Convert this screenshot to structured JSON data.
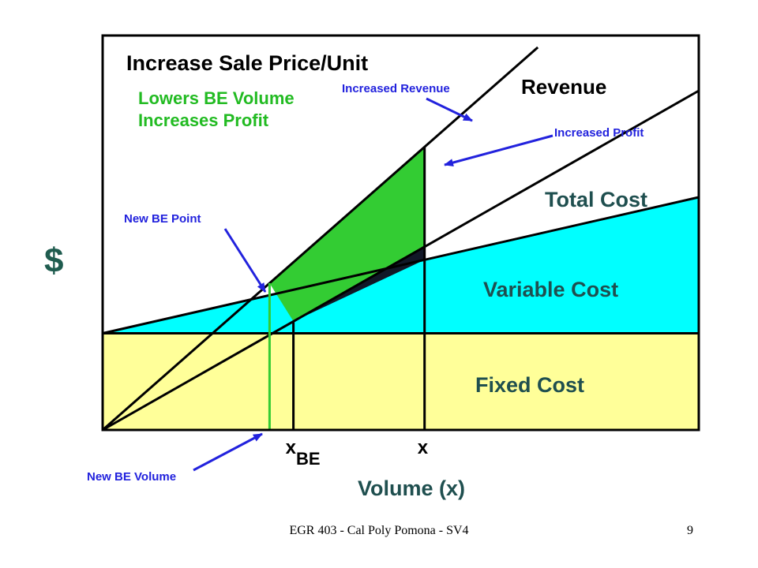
{
  "colors": {
    "fixed": "#FFFF99",
    "variable": "#00FFFF",
    "increased_profit": "#33CC33",
    "profit": "#111827",
    "annotation_green": "#22BB22",
    "annotation_blue": "#2222DD",
    "ylabel_color": "#1F5C4F"
  },
  "chart_data": {
    "type": "line",
    "title": "Increase Sale Price/Unit",
    "subtitle_lines": [
      "Lowers BE Volume",
      "Increases Profit"
    ],
    "ylabel": "$",
    "xlabel": "Volume (x)",
    "xlim": [
      0,
      100
    ],
    "ylim": [
      0,
      100
    ],
    "grid": false,
    "x_ticks": [
      {
        "name": "xbe",
        "main": "x",
        "sub": "BE",
        "value": 32
      },
      {
        "name": "x",
        "main": "x",
        "sub": "",
        "value": 54
      }
    ],
    "series": [
      {
        "name": "Revenue",
        "x": [
          0,
          100
        ],
        "y": [
          0,
          86
        ]
      },
      {
        "name": "Increased Revenue",
        "x": [
          0,
          73
        ],
        "y": [
          0,
          97
        ]
      },
      {
        "name": "Total Cost",
        "x": [
          0,
          100
        ],
        "y": [
          24.5,
          59
        ]
      }
    ],
    "fixed_cost": 24.5,
    "regions": [
      {
        "name": "Fixed Cost",
        "label": "Fixed Cost"
      },
      {
        "name": "Variable Cost",
        "label": "Variable Cost"
      }
    ],
    "region_labels": {
      "total_cost": "Total Cost"
    },
    "annotations": [
      {
        "name": "increased-revenue",
        "text": "Increased Revenue"
      },
      {
        "name": "increased-profit",
        "text": "Increased Profit"
      },
      {
        "name": "new-be-point",
        "text": "New BE Point"
      },
      {
        "name": "new-be-volume",
        "text": "New BE Volume"
      }
    ],
    "new_be_volume": 28,
    "be_volume": 32,
    "operating_volume": 54
  },
  "footer": {
    "text": "EGR 403 - Cal Poly Pomona - SV4",
    "page": "9"
  }
}
